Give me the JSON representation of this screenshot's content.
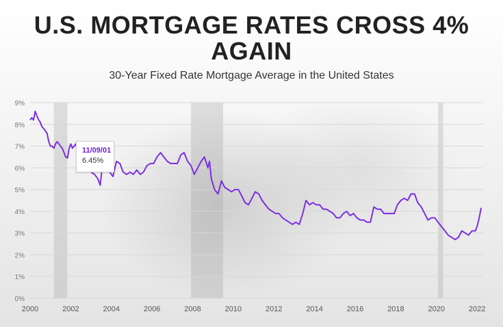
{
  "chart_data": {
    "type": "line",
    "title": "U.S. MORTGAGE RATES CROSS 4% AGAIN",
    "subtitle": "30-Year Fixed Rate Mortgage Average in the United States",
    "xlabel": "",
    "ylabel": "",
    "x_ticks": [
      "2000",
      "2002",
      "2004",
      "2006",
      "2008",
      "2010",
      "2012",
      "2014",
      "2016",
      "2018",
      "2020",
      "2022"
    ],
    "y_ticks": [
      "0%",
      "1%",
      "2%",
      "3%",
      "4%",
      "5%",
      "6%",
      "7%",
      "8%",
      "9%"
    ],
    "xlim": [
      2000,
      2022.3
    ],
    "ylim": [
      0,
      9
    ],
    "grid": true,
    "line_color": "#7b2fe0",
    "recession_bands": [
      [
        2001.17,
        2001.83
      ],
      [
        2007.92,
        2009.5
      ],
      [
        2020.08,
        2020.33
      ]
    ],
    "series": [
      {
        "x": [
          2000.0,
          2000.08,
          2000.17,
          2000.25,
          2000.33,
          2000.42,
          2000.5,
          2000.58,
          2000.67,
          2000.75,
          2000.83,
          2000.92,
          2001.0,
          2001.08,
          2001.17,
          2001.25,
          2001.33,
          2001.42,
          2001.5,
          2001.58,
          2001.67,
          2001.75,
          2001.84,
          2001.92,
          2002.0,
          2002.08,
          2002.17,
          2002.25,
          2002.33,
          2002.42,
          2002.5,
          2002.58,
          2002.67,
          2002.75,
          2002.83,
          2002.92,
          2003.0,
          2003.17,
          2003.33,
          2003.45,
          2003.58,
          2003.75,
          2003.92,
          2004.08,
          2004.25,
          2004.42,
          2004.58,
          2004.75,
          2004.92,
          2005.08,
          2005.25,
          2005.42,
          2005.58,
          2005.75,
          2005.92,
          2006.08,
          2006.25,
          2006.42,
          2006.58,
          2006.75,
          2006.92,
          2007.08,
          2007.25,
          2007.42,
          2007.58,
          2007.75,
          2007.92,
          2008.08,
          2008.25,
          2008.42,
          2008.58,
          2008.75,
          2008.83,
          2008.92,
          2009.08,
          2009.25,
          2009.42,
          2009.58,
          2009.75,
          2009.92,
          2010.08,
          2010.25,
          2010.42,
          2010.58,
          2010.75,
          2010.92,
          2011.08,
          2011.25,
          2011.42,
          2011.58,
          2011.75,
          2011.92,
          2012.08,
          2012.25,
          2012.42,
          2012.58,
          2012.75,
          2012.92,
          2013.08,
          2013.25,
          2013.42,
          2013.58,
          2013.75,
          2013.92,
          2014.08,
          2014.25,
          2014.42,
          2014.58,
          2014.75,
          2014.92,
          2015.08,
          2015.25,
          2015.42,
          2015.58,
          2015.75,
          2015.92,
          2016.08,
          2016.25,
          2016.42,
          2016.58,
          2016.75,
          2016.92,
          2017.08,
          2017.25,
          2017.42,
          2017.58,
          2017.75,
          2017.92,
          2018.08,
          2018.25,
          2018.42,
          2018.58,
          2018.75,
          2018.92,
          2019.08,
          2019.25,
          2019.42,
          2019.58,
          2019.75,
          2019.92,
          2020.08,
          2020.25,
          2020.42,
          2020.58,
          2020.75,
          2020.92,
          2021.08,
          2021.25,
          2021.42,
          2021.58,
          2021.75,
          2021.92,
          2022.0,
          2022.08,
          2022.15,
          2022.2
        ],
        "values": [
          8.2,
          8.3,
          8.2,
          8.6,
          8.4,
          8.2,
          8.1,
          7.9,
          7.8,
          7.7,
          7.6,
          7.2,
          7.0,
          7.0,
          6.9,
          7.1,
          7.2,
          7.1,
          7.0,
          6.9,
          6.7,
          6.5,
          6.45,
          6.9,
          7.1,
          6.9,
          7.0,
          7.1,
          6.8,
          6.7,
          6.5,
          6.3,
          6.1,
          6.0,
          6.1,
          6.0,
          5.8,
          5.7,
          5.5,
          5.2,
          6.3,
          6.0,
          5.8,
          5.6,
          6.3,
          6.2,
          5.8,
          5.7,
          5.8,
          5.7,
          5.9,
          5.7,
          5.8,
          6.1,
          6.2,
          6.2,
          6.5,
          6.7,
          6.5,
          6.3,
          6.2,
          6.2,
          6.2,
          6.6,
          6.7,
          6.3,
          6.1,
          5.7,
          6.0,
          6.3,
          6.5,
          6.0,
          6.3,
          5.5,
          5.0,
          4.8,
          5.4,
          5.1,
          5.0,
          4.9,
          5.0,
          5.0,
          4.7,
          4.4,
          4.3,
          4.6,
          4.9,
          4.8,
          4.5,
          4.3,
          4.1,
          4.0,
          3.9,
          3.9,
          3.7,
          3.6,
          3.5,
          3.4,
          3.5,
          3.4,
          3.9,
          4.5,
          4.3,
          4.4,
          4.3,
          4.3,
          4.1,
          4.1,
          4.0,
          3.9,
          3.7,
          3.7,
          3.9,
          4.0,
          3.8,
          3.9,
          3.7,
          3.6,
          3.6,
          3.5,
          3.5,
          4.2,
          4.1,
          4.1,
          3.9,
          3.9,
          3.9,
          3.9,
          4.3,
          4.5,
          4.6,
          4.5,
          4.8,
          4.8,
          4.4,
          4.2,
          3.9,
          3.6,
          3.7,
          3.7,
          3.5,
          3.3,
          3.1,
          2.9,
          2.8,
          2.7,
          2.8,
          3.1,
          3.0,
          2.9,
          3.1,
          3.1,
          3.3,
          3.6,
          3.9,
          4.16
        ]
      }
    ],
    "tooltip": {
      "date": "11/09/01",
      "value": "6.45%"
    }
  }
}
